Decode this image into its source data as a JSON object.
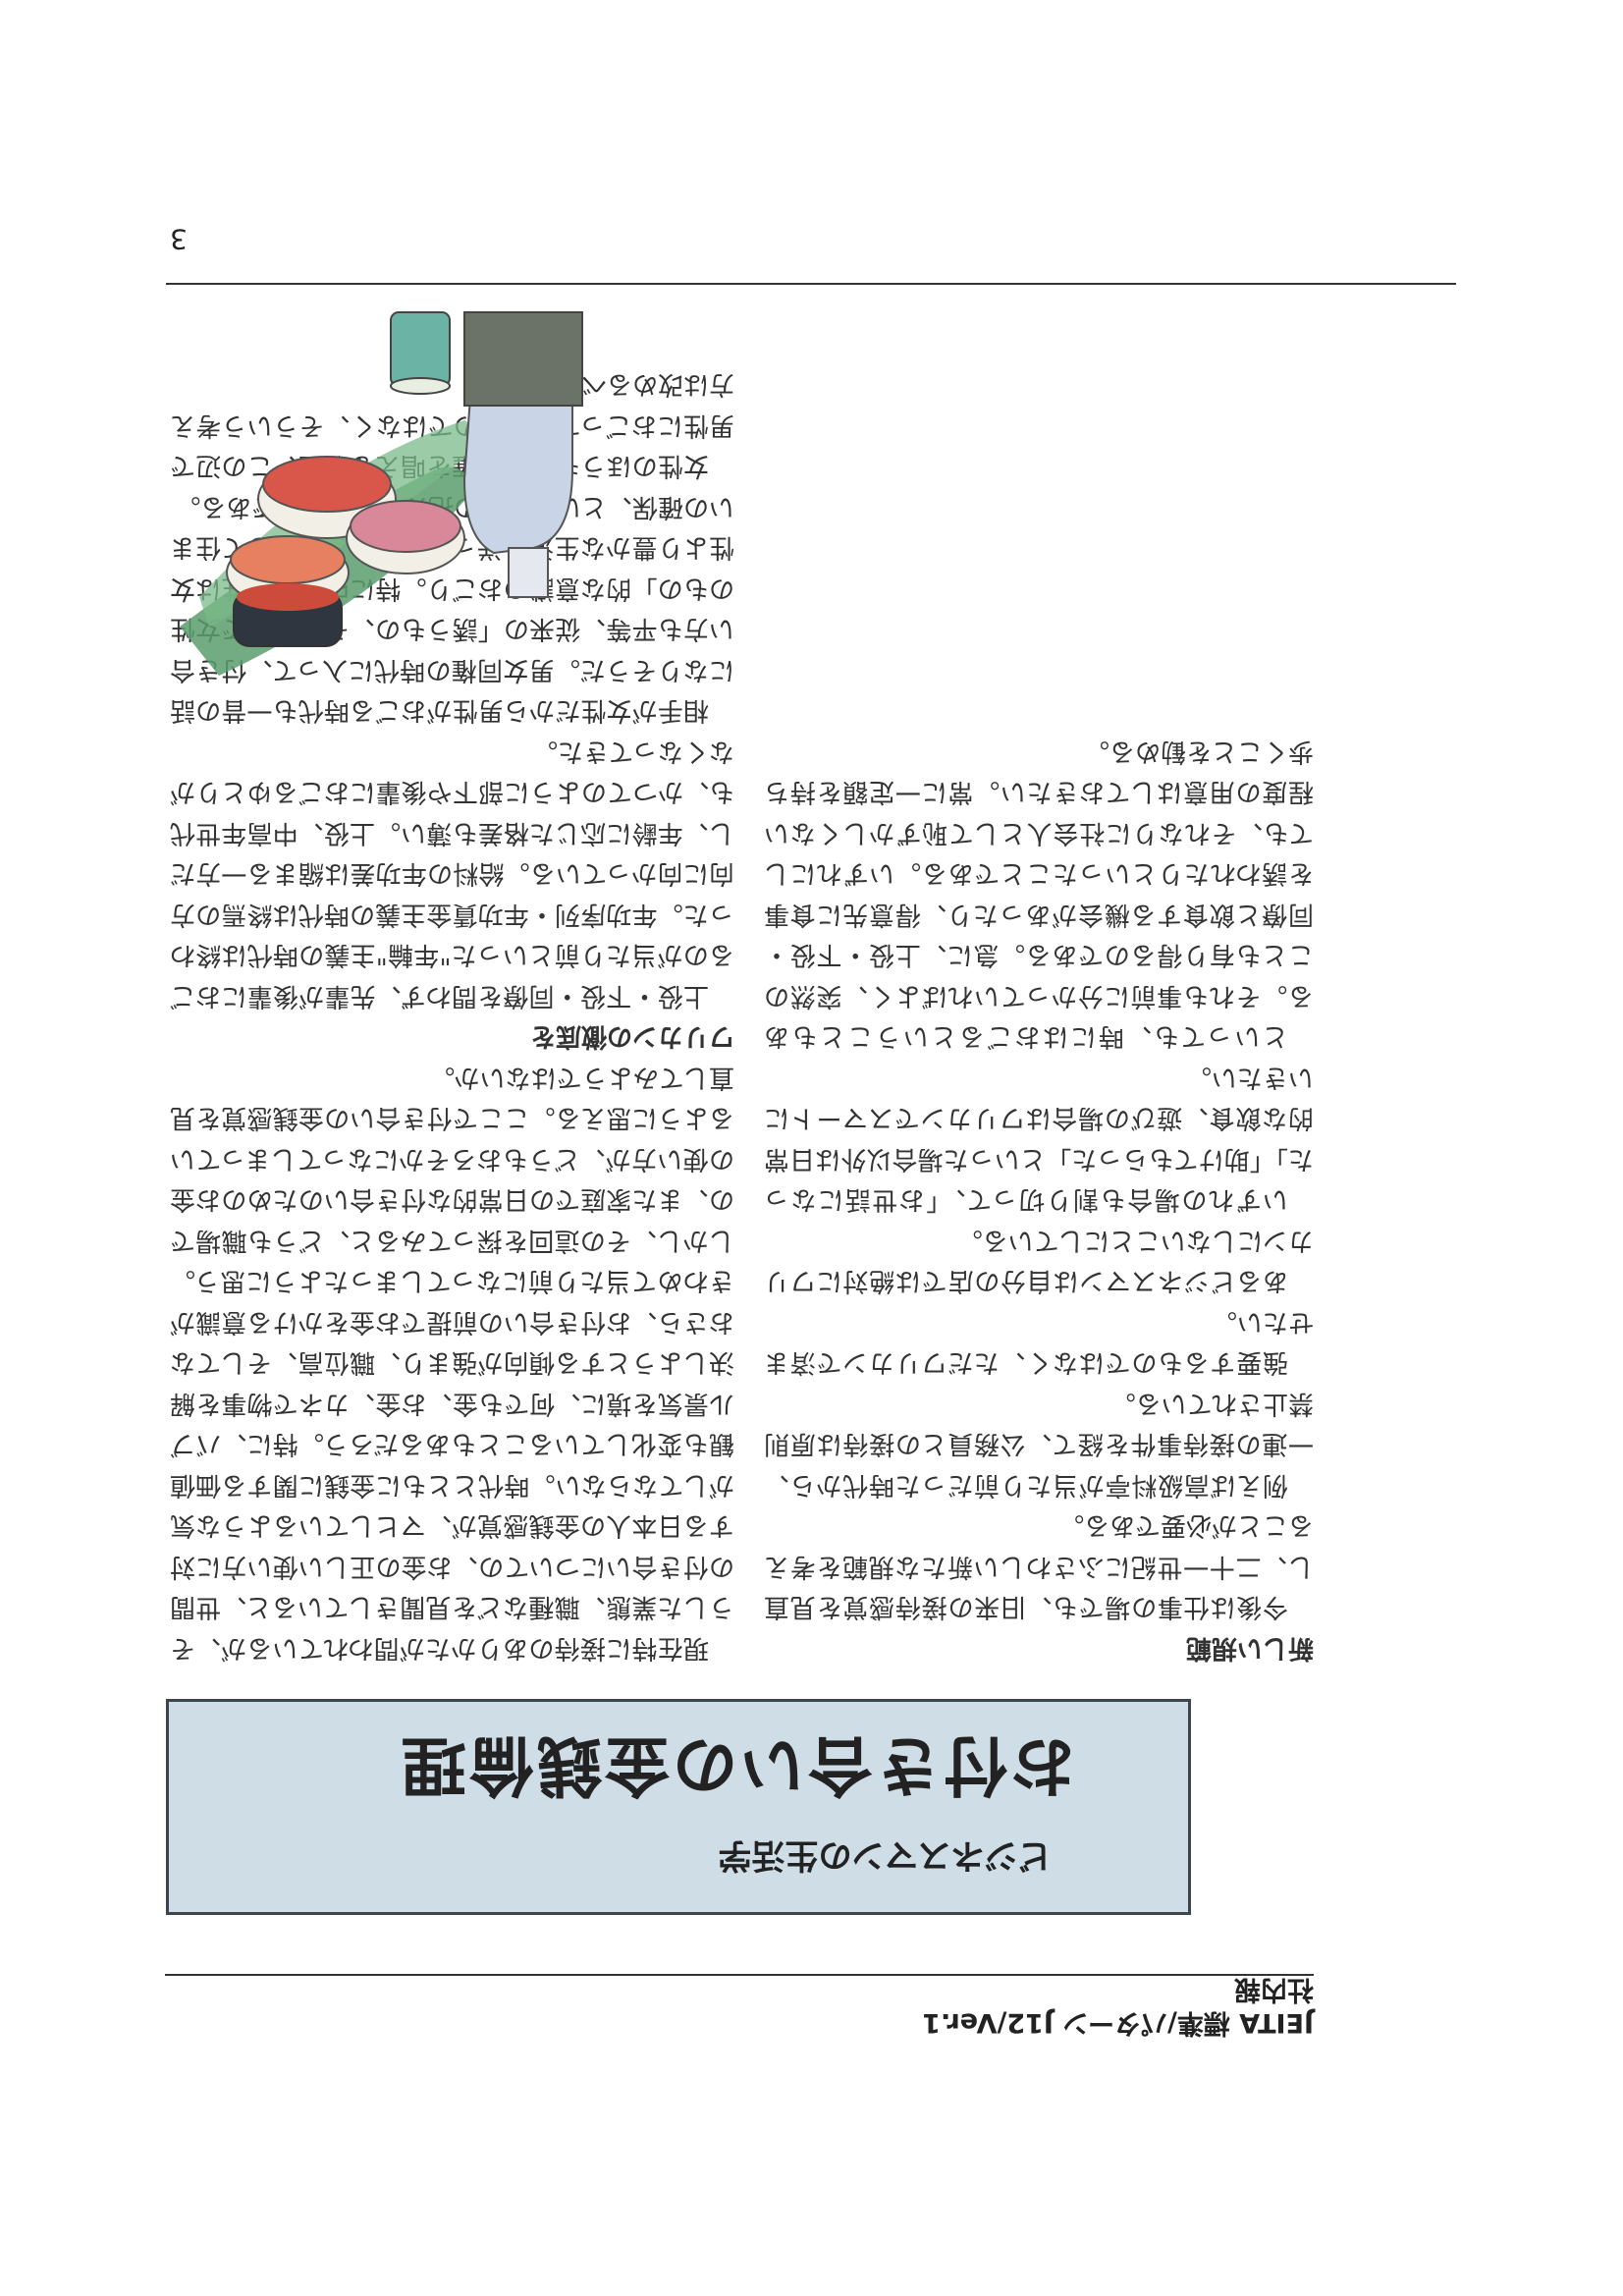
{
  "header": {
    "line1": "JEITA 標準/パターン J12/Ver.1",
    "line2": "社内報"
  },
  "banner": {
    "subtitle": "ビジネスマンの生活学",
    "title": "お付き合いの金銭倫理"
  },
  "column_left": {
    "paragraphs": [
      "現在特に接待のありかたが問われているが、そうした業態、職種などを見聞きしていると、世間の付き合いについての、お金の正しい使い方に対する日本人の金銭感覚が、マヒしているような気がしてならない。時代とともに金銭に関する価値観も変化していることもあるだろう。特に、バブル景気を境に、何でも金、お金、カネで物事を解決しようとする傾向が強まり、職位高、そしてなおさら、お付き合いの前提でお金をかける意識がきわめて当たり前になってしまったように思う。しかし、その這回を探ってみると、どうも職場での、また家庭での日常的な付き合いのためのお金の使い方が、どうもおろそかになってしまっているように思える。ここで付き合いの金銭感覚を見直してみようではないか。",
      "ワリカンの徹底を",
      "上役・下役・同僚を問わず、先輩が後輩におごるのが当たり前といった\"年輪\"主義の時代は終わった。年功序列・年功賃金主義の時代は終焉の方向に向かっている。給料の年功差は縮まる一方だし、年齢に応じた格差も薄い。上役、中高年世代も、かつてのように部下や後輩におごるゆとりがなくなってきた。",
      "相手が女性だから男性がおごる時代も一昔の話になりそうだ。男女同権の時代に入って、付き合い方も平等、従来の「誘うもの、そのなかで女性のもの」的な意識のおごり。特に中高年男性は女性より豊かな生活を送っていたり、若くして住まいの確保、といったもの抱えているからである。",
      "女性のほうも男女同権を唱える以上、この辺で男性におごってもらうのではなく、そういう考え方は改めるべきである。"
    ]
  },
  "column_right": {
    "paragraphs": [
      "いずれの場合も割り切って、「お世話になった」「助けてもらった」といった場合以外は日常的な飲食、遊びの場合はワリカンでスマートにいきたい。",
      "といっても、時にはおごるということもある。それも事前に分かっていればよく、突然のことも有り得るのである。急に、上役・下役・同僚と飲食する機会があったり、得意先に食事を誘われたりといったことである。いずれにしても、それなりに社会人として恥ずかしくない程度の用意はしておきたい。常に一定額を持ち歩くことを勧める。"
    ]
  },
  "column_bottom": {
    "paragraphs": [
      "新しい規範",
      "今後は仕事の場でも、旧来の接待感覚を見直し、二十一世紀にふさわしい新たな規範を考えることが必要である。",
      "例えば高級料亭が当たり前だった時代から、一連の接待事件を経て、公務員との接待は原則禁止されている。",
      "強要するものではなく、ただワリカンで済ませたい。",
      "あるビジネスマンは自分の店では絶対にワリカンにしないことにしている。"
    ]
  },
  "page_number": "3",
  "illustration": {
    "icon": "sushi-and-sake-illustration"
  }
}
